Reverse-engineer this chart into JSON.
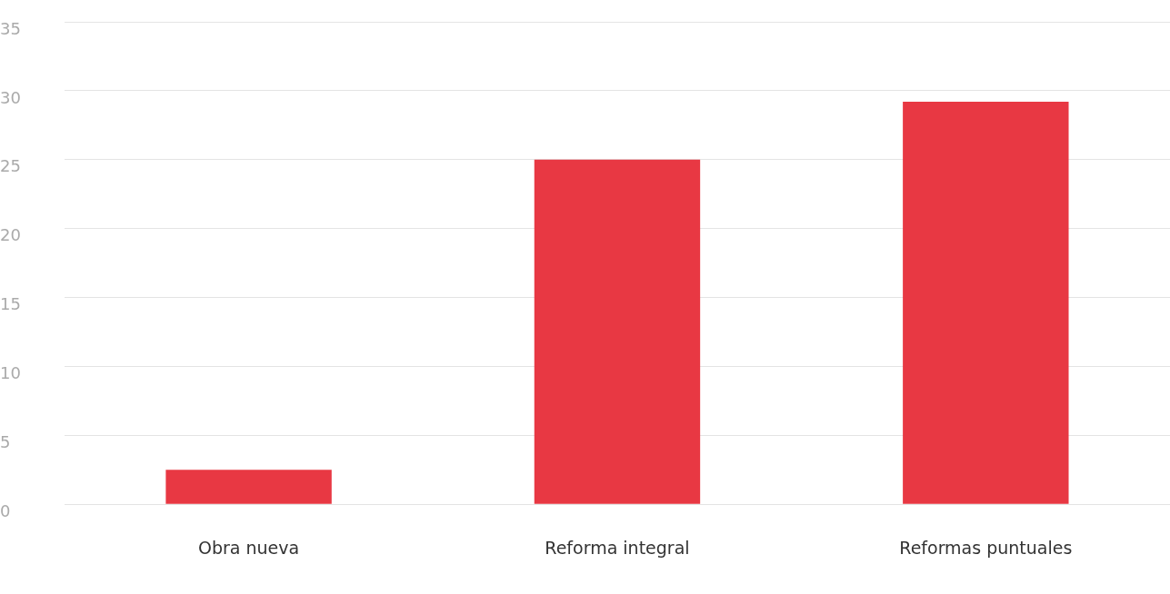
{
  "chart_data": {
    "type": "bar",
    "categories": [
      "Obra nueva",
      "Reforma integral",
      "Reformas puntuales"
    ],
    "values": [
      2.5,
      25,
      29.2
    ],
    "color": "#e83843",
    "ylim": [
      0,
      35
    ],
    "yticks": [
      0,
      5,
      10,
      15,
      20,
      25,
      30,
      35
    ],
    "grid": "y"
  }
}
